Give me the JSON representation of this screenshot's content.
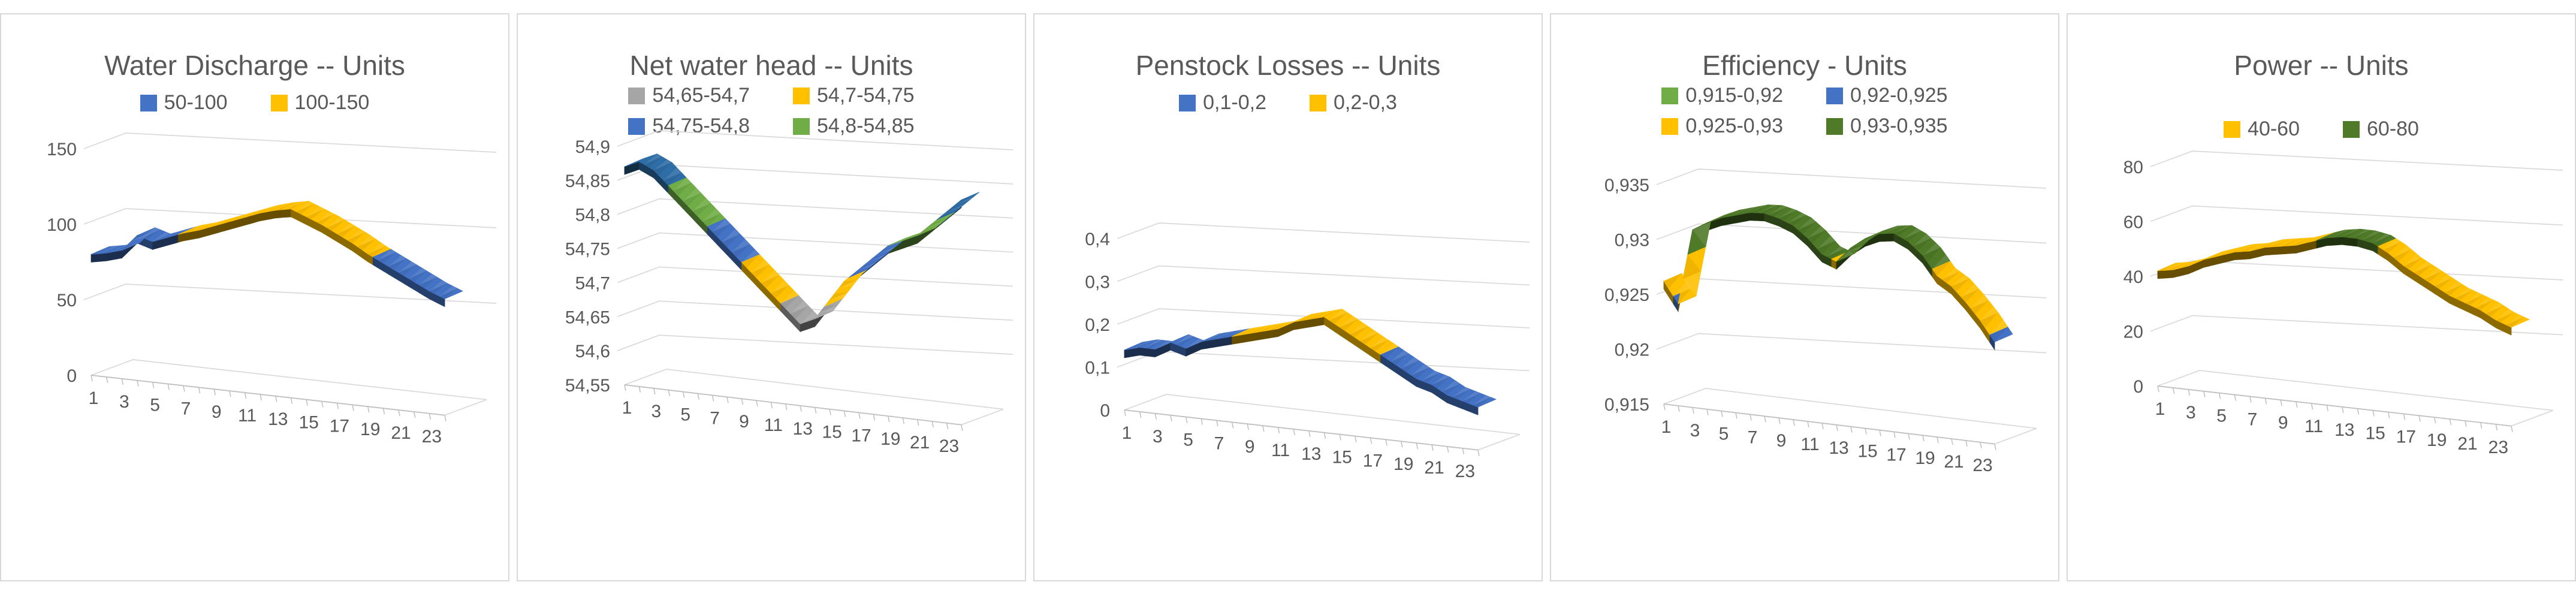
{
  "page": {
    "background": "#ffffff",
    "panel_border_color": "#D9D9D9",
    "gridline_color": "#D9D9D9",
    "axis_line_color": "#BFBFBF",
    "title_color": "#595959",
    "tick_label_color": "#595959"
  },
  "colors": {
    "blue": "#4472C4",
    "yellow": "#FFC000",
    "gray": "#A6A6A6",
    "green": "#70AD47",
    "dark_green": "#4F7A28",
    "dark_blue": "#2E6DA6"
  },
  "chart_data": [
    {
      "type": "surface",
      "title": "Water Discharge -- Units",
      "xlabel": "",
      "ylabel": "",
      "x": [
        1,
        2,
        3,
        4,
        5,
        6,
        7,
        8,
        9,
        10,
        11,
        12,
        13,
        14,
        15,
        16,
        17,
        18,
        19,
        20,
        21,
        22,
        23,
        24
      ],
      "values": [
        80,
        82,
        85,
        96,
        93,
        97,
        101,
        104,
        108,
        112,
        116,
        120,
        123,
        125,
        121,
        117,
        112,
        107,
        101,
        96,
        91,
        86,
        81,
        77
      ],
      "ylim": [
        0,
        150
      ],
      "y_ticks": [
        {
          "label": "0",
          "value": 0
        },
        {
          "label": "50",
          "value": 50
        },
        {
          "label": "100",
          "value": 100
        },
        {
          "label": "150",
          "value": 150
        }
      ],
      "x_tick_labels": [
        "1",
        "3",
        "5",
        "7",
        "9",
        "11",
        "13",
        "15",
        "17",
        "19",
        "21",
        "23"
      ],
      "legend_rows": [
        [
          {
            "label": "50-100",
            "color": "#4472C4"
          },
          {
            "label": "100-150",
            "color": "#FFC000"
          }
        ]
      ],
      "bands": [
        {
          "min": -999999,
          "max": 100,
          "color": "#4472C4"
        },
        {
          "min": 100,
          "max": 999999,
          "color": "#FFC000"
        }
      ],
      "grid": true,
      "legend_position": "top"
    },
    {
      "type": "surface",
      "title": "Net water head -- Units",
      "xlabel": "",
      "ylabel": "",
      "x": [
        1,
        2,
        3,
        4,
        5,
        6,
        7,
        8,
        9,
        10,
        11,
        12,
        13,
        14,
        15,
        16,
        17,
        18,
        19,
        20,
        21,
        22,
        23,
        24
      ],
      "values": [
        54.87,
        54.88,
        54.87,
        54.85,
        54.83,
        54.81,
        54.79,
        54.77,
        54.75,
        54.73,
        54.71,
        54.69,
        54.67,
        54.68,
        54.71,
        54.74,
        54.76,
        54.78,
        54.8,
        54.81,
        54.82,
        54.84,
        54.86,
        54.88
      ],
      "ylim": [
        54.55,
        54.9
      ],
      "y_ticks": [
        {
          "label": "54,55",
          "value": 54.55
        },
        {
          "label": "54,6",
          "value": 54.6
        },
        {
          "label": "54,65",
          "value": 54.65
        },
        {
          "label": "54,7",
          "value": 54.7
        },
        {
          "label": "54,75",
          "value": 54.75
        },
        {
          "label": "54,8",
          "value": 54.8
        },
        {
          "label": "54,85",
          "value": 54.85
        },
        {
          "label": "54,9",
          "value": 54.9
        }
      ],
      "x_tick_labels": [
        "1",
        "3",
        "5",
        "7",
        "9",
        "11",
        "13",
        "15",
        "17",
        "19",
        "21",
        "23"
      ],
      "legend_rows": [
        [
          {
            "label": "54,65-54,7",
            "color": "#A6A6A6"
          },
          {
            "label": "54,7-54,75",
            "color": "#FFC000"
          }
        ],
        [
          {
            "label": "54,75-54,8",
            "color": "#4472C4"
          },
          {
            "label": "54,8-54,85",
            "color": "#70AD47"
          }
        ]
      ],
      "bands": [
        {
          "min": -999999,
          "max": 54.7,
          "color": "#A6A6A6"
        },
        {
          "min": 54.7,
          "max": 54.75,
          "color": "#FFC000"
        },
        {
          "min": 54.75,
          "max": 54.8,
          "color": "#4472C4"
        },
        {
          "min": 54.8,
          "max": 54.85,
          "color": "#70AD47"
        },
        {
          "min": 54.85,
          "max": 999999,
          "color": "#2E6DA6"
        }
      ],
      "grid": true,
      "legend_position": "top"
    },
    {
      "type": "surface",
      "title": "Penstock Losses -- Units",
      "xlabel": "",
      "ylabel": "",
      "x": [
        1,
        2,
        3,
        4,
        5,
        6,
        7,
        8,
        9,
        10,
        11,
        12,
        13,
        14,
        15,
        16,
        17,
        18,
        19,
        20,
        21,
        22,
        23,
        24
      ],
      "values": [
        0.14,
        0.15,
        0.15,
        0.17,
        0.16,
        0.18,
        0.19,
        0.2,
        0.21,
        0.22,
        0.23,
        0.25,
        0.26,
        0.27,
        0.25,
        0.23,
        0.21,
        0.19,
        0.17,
        0.15,
        0.14,
        0.12,
        0.11,
        0.1
      ],
      "ylim": [
        0,
        0.4
      ],
      "y_ticks": [
        {
          "label": "0",
          "value": 0
        },
        {
          "label": "0,1",
          "value": 0.1
        },
        {
          "label": "0,2",
          "value": 0.2
        },
        {
          "label": "0,3",
          "value": 0.3
        },
        {
          "label": "0,4",
          "value": 0.4
        }
      ],
      "x_tick_labels": [
        "1",
        "3",
        "5",
        "7",
        "9",
        "11",
        "13",
        "15",
        "17",
        "19",
        "21",
        "23"
      ],
      "legend_rows": [
        [
          {
            "label": "0,1-0,2",
            "color": "#4472C4"
          },
          {
            "label": "0,2-0,3",
            "color": "#FFC000"
          }
        ]
      ],
      "bands": [
        {
          "min": -999999,
          "max": 0.2,
          "color": "#4472C4"
        },
        {
          "min": 0.2,
          "max": 999999,
          "color": "#FFC000"
        }
      ],
      "grid": true,
      "legend_position": "top"
    },
    {
      "type": "surface",
      "title": "Efficiency - Units",
      "xlabel": "",
      "ylabel": "",
      "x": [
        1,
        2,
        3,
        4,
        5,
        6,
        7,
        8,
        9,
        10,
        11,
        12,
        13,
        14,
        15,
        16,
        17,
        18,
        19,
        20,
        21,
        22,
        23,
        24
      ],
      "values": [
        0.9262,
        0.9243,
        0.9312,
        0.932,
        0.9326,
        0.933,
        0.9334,
        0.9335,
        0.9332,
        0.9327,
        0.9317,
        0.9304,
        0.9299,
        0.9313,
        0.9323,
        0.9329,
        0.9331,
        0.9325,
        0.9314,
        0.9297,
        0.9289,
        0.9276,
        0.9261,
        0.9243
      ],
      "ylim": [
        0.915,
        0.935
      ],
      "y_ticks": [
        {
          "label": "0,915",
          "value": 0.915
        },
        {
          "label": "0,92",
          "value": 0.92
        },
        {
          "label": "0,925",
          "value": 0.925
        },
        {
          "label": "0,93",
          "value": 0.93
        },
        {
          "label": "0,935",
          "value": 0.935
        }
      ],
      "x_tick_labels": [
        "1",
        "3",
        "5",
        "7",
        "9",
        "11",
        "13",
        "15",
        "17",
        "19",
        "21",
        "23"
      ],
      "legend_rows": [
        [
          {
            "label": "0,915-0,92",
            "color": "#70AD47"
          },
          {
            "label": "0,92-0,925",
            "color": "#4472C4"
          }
        ],
        [
          {
            "label": "0,925-0,93",
            "color": "#FFC000"
          },
          {
            "label": "0,93-0,935",
            "color": "#4F7A28"
          }
        ]
      ],
      "bands": [
        {
          "min": -999999,
          "max": 0.92,
          "color": "#70AD47"
        },
        {
          "min": 0.92,
          "max": 0.925,
          "color": "#4472C4"
        },
        {
          "min": 0.925,
          "max": 0.93,
          "color": "#FFC000"
        },
        {
          "min": 0.93,
          "max": 999999,
          "color": "#4F7A28"
        }
      ],
      "grid": true,
      "legend_position": "top"
    },
    {
      "type": "surface",
      "title": "Power -- Units",
      "xlabel": "",
      "ylabel": "",
      "x": [
        1,
        2,
        3,
        4,
        5,
        6,
        7,
        8,
        9,
        10,
        11,
        12,
        13,
        14,
        15,
        16,
        17,
        18,
        19,
        20,
        21,
        22,
        23,
        24
      ],
      "values": [
        42,
        43,
        45,
        48,
        50,
        52,
        53,
        55,
        56,
        57,
        59,
        61,
        62,
        62,
        61,
        58,
        54,
        51,
        48,
        45,
        43,
        41,
        38,
        36
      ],
      "ylim": [
        0,
        80
      ],
      "y_ticks": [
        {
          "label": "0",
          "value": 0
        },
        {
          "label": "20",
          "value": 20
        },
        {
          "label": "40",
          "value": 40
        },
        {
          "label": "60",
          "value": 60
        },
        {
          "label": "80",
          "value": 80
        }
      ],
      "x_tick_labels": [
        "1",
        "3",
        "5",
        "7",
        "9",
        "11",
        "13",
        "15",
        "17",
        "19",
        "21",
        "23"
      ],
      "legend_rows": [
        [
          {
            "label": "40-60",
            "color": "#FFC000"
          },
          {
            "label": "60-80",
            "color": "#4F7A28"
          }
        ]
      ],
      "bands": [
        {
          "min": -999999,
          "max": 60,
          "color": "#FFC000"
        },
        {
          "min": 60,
          "max": 999999,
          "color": "#4F7A28"
        }
      ],
      "grid": true,
      "legend_position": "top"
    }
  ]
}
